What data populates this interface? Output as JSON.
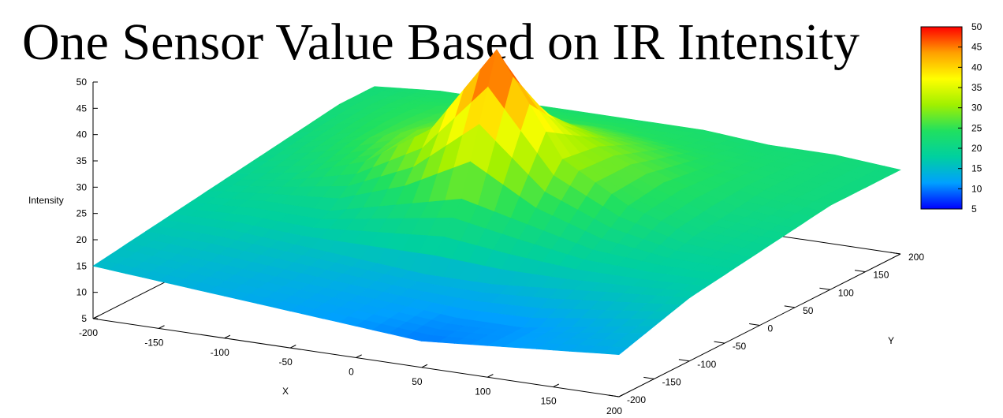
{
  "chart_data": {
    "type": "surface3d",
    "title": "One Sensor Value Based on IR Intensity",
    "xlabel": "X",
    "ylabel": "Y",
    "zlabel": "Intensity",
    "xlim": [
      -200,
      200
    ],
    "ylim": [
      -200,
      200
    ],
    "zlim": [
      5,
      50
    ],
    "x_ticks": [
      -200,
      -150,
      -100,
      -50,
      0,
      50,
      100,
      150,
      200
    ],
    "y_ticks": [
      -200,
      -150,
      -100,
      -50,
      0,
      50,
      100,
      150,
      200
    ],
    "z_ticks": [
      5,
      10,
      15,
      20,
      25,
      30,
      35,
      40,
      45,
      50
    ],
    "colorbar": {
      "range": [
        5,
        50
      ],
      "ticks": [
        5,
        10,
        15,
        20,
        25,
        30,
        35,
        40,
        45,
        50
      ],
      "colors": [
        "#0000ff",
        "#00a0ff",
        "#00d0a0",
        "#20e060",
        "#a0f000",
        "#ffff00",
        "#ffa000",
        "#ff0000"
      ]
    },
    "grid": false,
    "x": [
      -200,
      -150,
      -100,
      -50,
      0,
      50,
      100,
      150,
      200
    ],
    "y": [
      -200,
      -150,
      -100,
      -50,
      0,
      50,
      100,
      150,
      200
    ],
    "z_rows_by_y": [
      [
        15,
        14,
        13,
        12,
        11,
        10,
        11,
        12,
        13
      ],
      [
        16,
        15,
        14,
        13,
        12,
        11,
        11,
        13,
        15
      ],
      [
        17,
        17,
        16,
        15,
        14,
        14,
        15,
        16,
        17
      ],
      [
        18,
        19,
        19,
        22,
        25,
        22,
        19,
        18,
        18
      ],
      [
        19,
        21,
        25,
        33,
        50,
        31,
        24,
        20,
        19
      ],
      [
        20,
        23,
        27,
        31,
        36,
        30,
        25,
        21,
        20
      ],
      [
        21,
        24,
        26,
        28,
        29,
        27,
        24,
        22,
        21
      ],
      [
        22,
        24,
        25,
        25,
        25,
        24,
        23,
        22,
        21
      ],
      [
        22,
        23,
        23,
        23,
        23,
        23,
        22,
        22,
        21
      ]
    ]
  }
}
